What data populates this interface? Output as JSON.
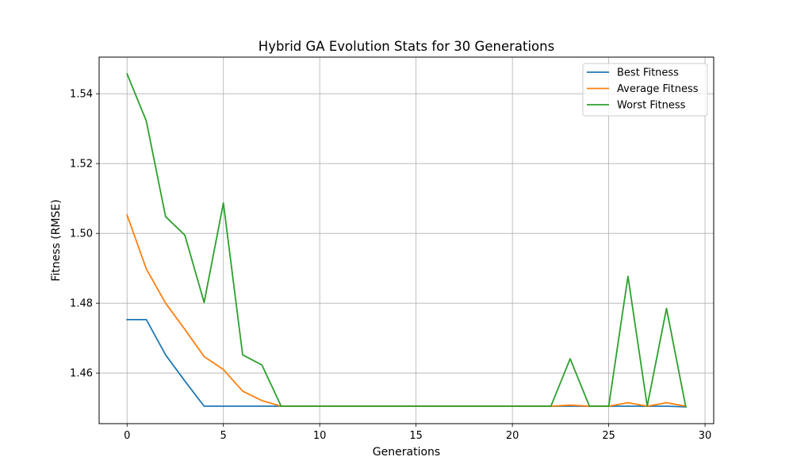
{
  "chart_data": {
    "type": "line",
    "title": "Hybrid GA Evolution Stats for 30 Generations",
    "xlabel": "Generations",
    "ylabel": "Fitness (RMSE)",
    "xlim": [
      -1.45,
      30.45
    ],
    "ylim": [
      1.4455,
      1.5505
    ],
    "x_ticks": [
      0,
      5,
      10,
      15,
      20,
      25,
      30
    ],
    "y_ticks": [
      1.46,
      1.48,
      1.5,
      1.52,
      1.54
    ],
    "y_tick_labels": [
      "1.46",
      "1.48",
      "1.50",
      "1.52",
      "1.54"
    ],
    "grid": true,
    "legend_position": "top-right",
    "x": [
      0,
      1,
      2,
      3,
      4,
      5,
      6,
      7,
      8,
      9,
      10,
      11,
      12,
      13,
      14,
      15,
      16,
      17,
      18,
      19,
      20,
      21,
      22,
      23,
      24,
      25,
      26,
      27,
      28,
      29
    ],
    "series": [
      {
        "name": "Best Fitness",
        "color": "#1f77b4",
        "values": [
          1.4753,
          1.4753,
          1.4652,
          1.4577,
          1.4505,
          1.4505,
          1.4505,
          1.4505,
          1.4505,
          1.4505,
          1.4505,
          1.4505,
          1.4505,
          1.4505,
          1.4505,
          1.4505,
          1.4505,
          1.4505,
          1.4505,
          1.4505,
          1.4505,
          1.4505,
          1.4505,
          1.4505,
          1.4505,
          1.4505,
          1.4505,
          1.4505,
          1.4505,
          1.4503
        ]
      },
      {
        "name": "Average Fitness",
        "color": "#ff7f0e",
        "values": [
          1.5053,
          1.4898,
          1.48,
          1.4725,
          1.4647,
          1.461,
          1.4548,
          1.4521,
          1.4505,
          1.4505,
          1.4505,
          1.4505,
          1.4505,
          1.4505,
          1.4505,
          1.4505,
          1.4505,
          1.4505,
          1.4505,
          1.4505,
          1.4505,
          1.4505,
          1.4505,
          1.4508,
          1.4505,
          1.4505,
          1.4515,
          1.4505,
          1.4515,
          1.4505
        ]
      },
      {
        "name": "Worst Fitness",
        "color": "#2ca02c",
        "values": [
          1.5457,
          1.5322,
          1.5048,
          1.4995,
          1.4802,
          1.5087,
          1.4652,
          1.4623,
          1.4505,
          1.4505,
          1.4505,
          1.4505,
          1.4505,
          1.4505,
          1.4505,
          1.4505,
          1.4505,
          1.4505,
          1.4505,
          1.4505,
          1.4505,
          1.4505,
          1.4505,
          1.4641,
          1.4505,
          1.4505,
          1.4877,
          1.4505,
          1.4785,
          1.4503
        ]
      }
    ]
  }
}
